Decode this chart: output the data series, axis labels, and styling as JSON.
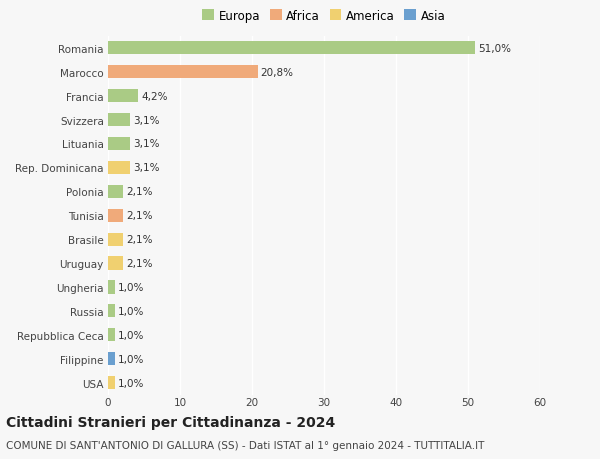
{
  "title": "Cittadini Stranieri per Cittadinanza - 2024",
  "subtitle": "COMUNE DI SANT'ANTONIO DI GALLURA (SS) - Dati ISTAT al 1° gennaio 2024 - TUTTITALIA.IT",
  "countries": [
    "Romania",
    "Marocco",
    "Francia",
    "Svizzera",
    "Lituania",
    "Rep. Dominicana",
    "Polonia",
    "Tunisia",
    "Brasile",
    "Uruguay",
    "Ungheria",
    "Russia",
    "Repubblica Ceca",
    "Filippine",
    "USA"
  ],
  "values": [
    51.0,
    20.8,
    4.2,
    3.1,
    3.1,
    3.1,
    2.1,
    2.1,
    2.1,
    2.1,
    1.0,
    1.0,
    1.0,
    1.0,
    1.0
  ],
  "labels": [
    "51,0%",
    "20,8%",
    "4,2%",
    "3,1%",
    "3,1%",
    "3,1%",
    "2,1%",
    "2,1%",
    "2,1%",
    "2,1%",
    "1,0%",
    "1,0%",
    "1,0%",
    "1,0%",
    "1,0%"
  ],
  "continents": [
    "Europa",
    "Africa",
    "Europa",
    "Europa",
    "Europa",
    "America",
    "Europa",
    "Africa",
    "America",
    "America",
    "Europa",
    "Europa",
    "Europa",
    "Asia",
    "America"
  ],
  "continent_colors": {
    "Europa": "#aacb85",
    "Africa": "#f0aa7a",
    "America": "#f0d070",
    "Asia": "#6a9fcf"
  },
  "legend_order": [
    "Europa",
    "Africa",
    "America",
    "Asia"
  ],
  "xlim": [
    0,
    60
  ],
  "xticks": [
    0,
    10,
    20,
    30,
    40,
    50,
    60
  ],
  "background_color": "#f7f7f7",
  "grid_color": "#ffffff",
  "bar_height": 0.55,
  "title_fontsize": 10,
  "subtitle_fontsize": 7.5,
  "label_fontsize": 7.5,
  "tick_fontsize": 7.5,
  "legend_fontsize": 8.5
}
